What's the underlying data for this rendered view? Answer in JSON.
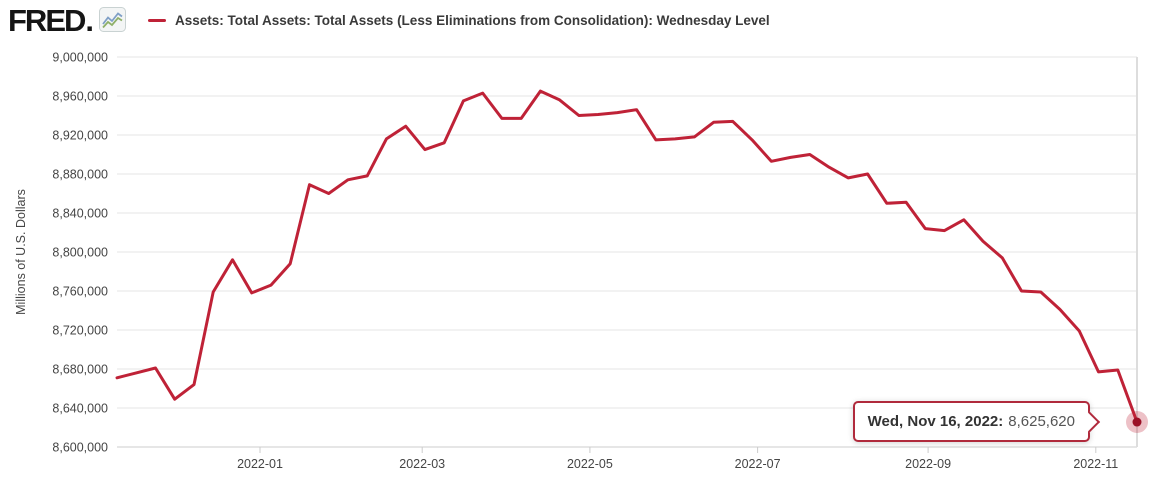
{
  "header": {
    "logo_text": "FRED",
    "logo_suffix": "."
  },
  "legend": {
    "series_label": "Assets: Total Assets: Total Assets (Less Eliminations from Consolidation): Wednesday Level",
    "series_color": "#bf2237"
  },
  "chart_data": {
    "type": "line",
    "title": "Assets: Total Assets: Total Assets (Less Eliminations from Consolidation): Wednesday Level",
    "xlabel": "",
    "ylabel": "Millions of U.S. Dollars",
    "legend_position": "top",
    "grid": "horizontal",
    "ylim": [
      8600000,
      9000000
    ],
    "y_step": 40000,
    "x_range": [
      "2021-11-10",
      "2022-11-16"
    ],
    "y_ticks": [
      {
        "value": 9000000,
        "label": "9,000,000"
      },
      {
        "value": 8960000,
        "label": "8,960,000"
      },
      {
        "value": 8920000,
        "label": "8,920,000"
      },
      {
        "value": 8880000,
        "label": "8,880,000"
      },
      {
        "value": 8840000,
        "label": "8,840,000"
      },
      {
        "value": 8800000,
        "label": "8,800,000"
      },
      {
        "value": 8760000,
        "label": "8,760,000"
      },
      {
        "value": 8720000,
        "label": "8,720,000"
      },
      {
        "value": 8680000,
        "label": "8,680,000"
      },
      {
        "value": 8640000,
        "label": "8,640,000"
      },
      {
        "value": 8600000,
        "label": "8,600,000"
      }
    ],
    "x_ticks": [
      {
        "date": "2022-01-01",
        "label": "2022-01"
      },
      {
        "date": "2022-03-01",
        "label": "2022-03"
      },
      {
        "date": "2022-05-01",
        "label": "2022-05"
      },
      {
        "date": "2022-07-01",
        "label": "2022-07"
      },
      {
        "date": "2022-09-01",
        "label": "2022-09"
      },
      {
        "date": "2022-11-01",
        "label": "2022-11"
      }
    ],
    "series": [
      {
        "name": "Assets: Total Assets: Total Assets (Less Eliminations from Consolidation): Wednesday Level",
        "color": "#bf2237",
        "points": [
          {
            "d": "2021-11-10",
            "v": 8671000
          },
          {
            "d": "2021-11-17",
            "v": 8676000
          },
          {
            "d": "2021-11-24",
            "v": 8681000
          },
          {
            "d": "2021-12-01",
            "v": 8649000
          },
          {
            "d": "2021-12-08",
            "v": 8664000
          },
          {
            "d": "2021-12-15",
            "v": 8759000
          },
          {
            "d": "2021-12-22",
            "v": 8792000
          },
          {
            "d": "2021-12-29",
            "v": 8758000
          },
          {
            "d": "2022-01-05",
            "v": 8766000
          },
          {
            "d": "2022-01-12",
            "v": 8788000
          },
          {
            "d": "2022-01-19",
            "v": 8869000
          },
          {
            "d": "2022-01-26",
            "v": 8860000
          },
          {
            "d": "2022-02-02",
            "v": 8874000
          },
          {
            "d": "2022-02-09",
            "v": 8878000
          },
          {
            "d": "2022-02-16",
            "v": 8916000
          },
          {
            "d": "2022-02-23",
            "v": 8929000
          },
          {
            "d": "2022-03-02",
            "v": 8905000
          },
          {
            "d": "2022-03-09",
            "v": 8912000
          },
          {
            "d": "2022-03-16",
            "v": 8955000
          },
          {
            "d": "2022-03-23",
            "v": 8963000
          },
          {
            "d": "2022-03-30",
            "v": 8937000
          },
          {
            "d": "2022-04-06",
            "v": 8937000
          },
          {
            "d": "2022-04-13",
            "v": 8965000
          },
          {
            "d": "2022-04-20",
            "v": 8956000
          },
          {
            "d": "2022-04-27",
            "v": 8940000
          },
          {
            "d": "2022-05-04",
            "v": 8941000
          },
          {
            "d": "2022-05-11",
            "v": 8943000
          },
          {
            "d": "2022-05-18",
            "v": 8946000
          },
          {
            "d": "2022-05-25",
            "v": 8915000
          },
          {
            "d": "2022-06-01",
            "v": 8916000
          },
          {
            "d": "2022-06-08",
            "v": 8918000
          },
          {
            "d": "2022-06-15",
            "v": 8933000
          },
          {
            "d": "2022-06-22",
            "v": 8934000
          },
          {
            "d": "2022-06-29",
            "v": 8915000
          },
          {
            "d": "2022-07-06",
            "v": 8893000
          },
          {
            "d": "2022-07-13",
            "v": 8897000
          },
          {
            "d": "2022-07-20",
            "v": 8900000
          },
          {
            "d": "2022-07-27",
            "v": 8887000
          },
          {
            "d": "2022-08-03",
            "v": 8876000
          },
          {
            "d": "2022-08-10",
            "v": 8880000
          },
          {
            "d": "2022-08-17",
            "v": 8850000
          },
          {
            "d": "2022-08-24",
            "v": 8851000
          },
          {
            "d": "2022-08-31",
            "v": 8824000
          },
          {
            "d": "2022-09-07",
            "v": 8822000
          },
          {
            "d": "2022-09-14",
            "v": 8833000
          },
          {
            "d": "2022-09-21",
            "v": 8811000
          },
          {
            "d": "2022-09-28",
            "v": 8794000
          },
          {
            "d": "2022-10-05",
            "v": 8760000
          },
          {
            "d": "2022-10-12",
            "v": 8759000
          },
          {
            "d": "2022-10-19",
            "v": 8741000
          },
          {
            "d": "2022-10-26",
            "v": 8719000
          },
          {
            "d": "2022-11-02",
            "v": 8677000
          },
          {
            "d": "2022-11-09",
            "v": 8679000
          },
          {
            "d": "2022-11-16",
            "v": 8625620
          }
        ]
      }
    ],
    "tooltip": {
      "label": "Wed, Nov 16, 2022:",
      "value": "8,625,620"
    },
    "colors": {
      "grid": "#e6e6e6",
      "axis": "#cccccc",
      "crosshair": "#dddddd",
      "tick_text": "#454545",
      "halo": "rgba(191,34,55,0.28)",
      "dot": "#9b1026",
      "tooltip_border": "#b02a3c"
    }
  }
}
